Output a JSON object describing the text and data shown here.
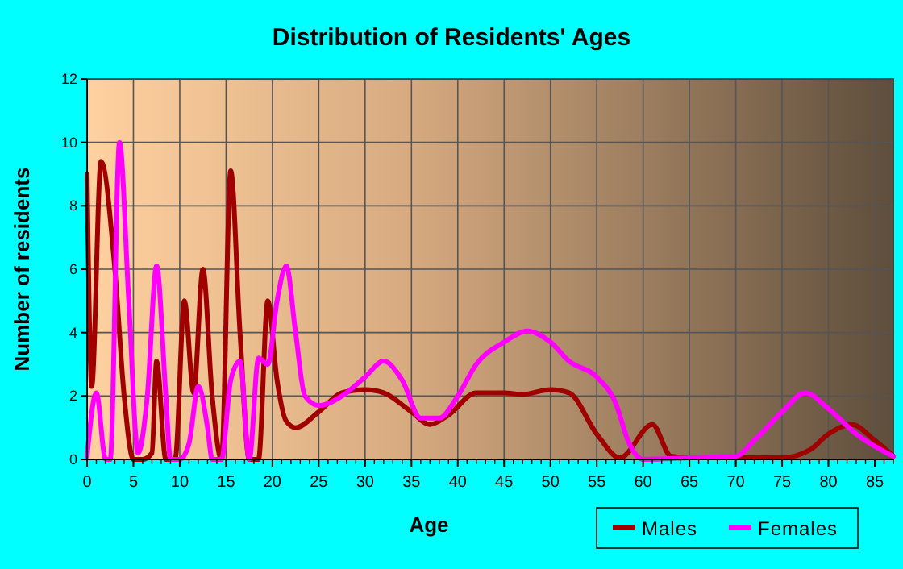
{
  "chart_data": {
    "type": "line",
    "title": "Distribution of Residents' Ages",
    "xlabel": "Age",
    "ylabel": "Number of residents",
    "xlim": [
      0,
      87
    ],
    "xticks": [
      0,
      5,
      10,
      15,
      20,
      25,
      30,
      35,
      40,
      45,
      50,
      55,
      60,
      65,
      70,
      75,
      80,
      85
    ],
    "ylim": [
      0,
      12
    ],
    "yticks": [
      0,
      2,
      4,
      6,
      8,
      10,
      12
    ],
    "grid": true,
    "legend": "bottom right",
    "series": [
      {
        "name": "Males",
        "color": "#a00000",
        "x": [
          0,
          0.5,
          1.5,
          3,
          4,
          5,
          6,
          7,
          7.5,
          8.5,
          9.5,
          10.5,
          11.5,
          12.5,
          13.5,
          14.5,
          15.5,
          16.5,
          17.5,
          18.5,
          19.5,
          20.5,
          21.5,
          22.5,
          25,
          27.5,
          30,
          32,
          35,
          37,
          39,
          42,
          45,
          47,
          50,
          52,
          55,
          57.5,
          61,
          63,
          65,
          70,
          75,
          78,
          80,
          82.5,
          85,
          87
        ],
        "values": [
          9,
          2.3,
          9.4,
          6,
          2,
          0,
          0,
          0.2,
          3.1,
          0,
          0,
          5,
          2.1,
          6,
          2,
          0,
          9.1,
          4,
          0,
          0,
          5,
          2.5,
          1.2,
          1,
          1.5,
          2.1,
          2.2,
          2.1,
          1.5,
          1.1,
          1.4,
          2.1,
          2.1,
          2.05,
          2.2,
          2.1,
          0.8,
          0.05,
          1.1,
          0.1,
          0.05,
          0.05,
          0.05,
          0.3,
          0.8,
          1.1,
          0.6,
          0.1
        ]
      },
      {
        "name": "Females",
        "color": "#ff00ff",
        "x": [
          0,
          1,
          2,
          2.5,
          3.5,
          4.5,
          5.5,
          6.5,
          7.5,
          8.5,
          9,
          10,
          11,
          12,
          13,
          13.5,
          14.5,
          15.5,
          16.5,
          17.5,
          18.5,
          19.5,
          20.5,
          21.5,
          22.5,
          23.5,
          25,
          27.5,
          30,
          32,
          34,
          36,
          38,
          40,
          42,
          45,
          47.5,
          50,
          52,
          55,
          57,
          58.5,
          60,
          65,
          70,
          72,
          75,
          77.5,
          80,
          83,
          87
        ],
        "values": [
          0.1,
          2.1,
          0,
          0,
          10,
          5,
          0.2,
          2,
          6.1,
          2,
          0,
          0,
          0.5,
          2.3,
          1,
          0,
          0,
          2.5,
          3.1,
          0,
          3.2,
          3,
          5,
          6.1,
          4,
          2,
          1.7,
          2,
          2.6,
          3.1,
          2.5,
          1.3,
          1.3,
          2,
          3,
          3.7,
          4.05,
          3.7,
          3.1,
          2.6,
          1.8,
          0.5,
          0,
          0.05,
          0.1,
          0.6,
          1.5,
          2.1,
          1.6,
          0.8,
          0.1
        ]
      }
    ]
  }
}
